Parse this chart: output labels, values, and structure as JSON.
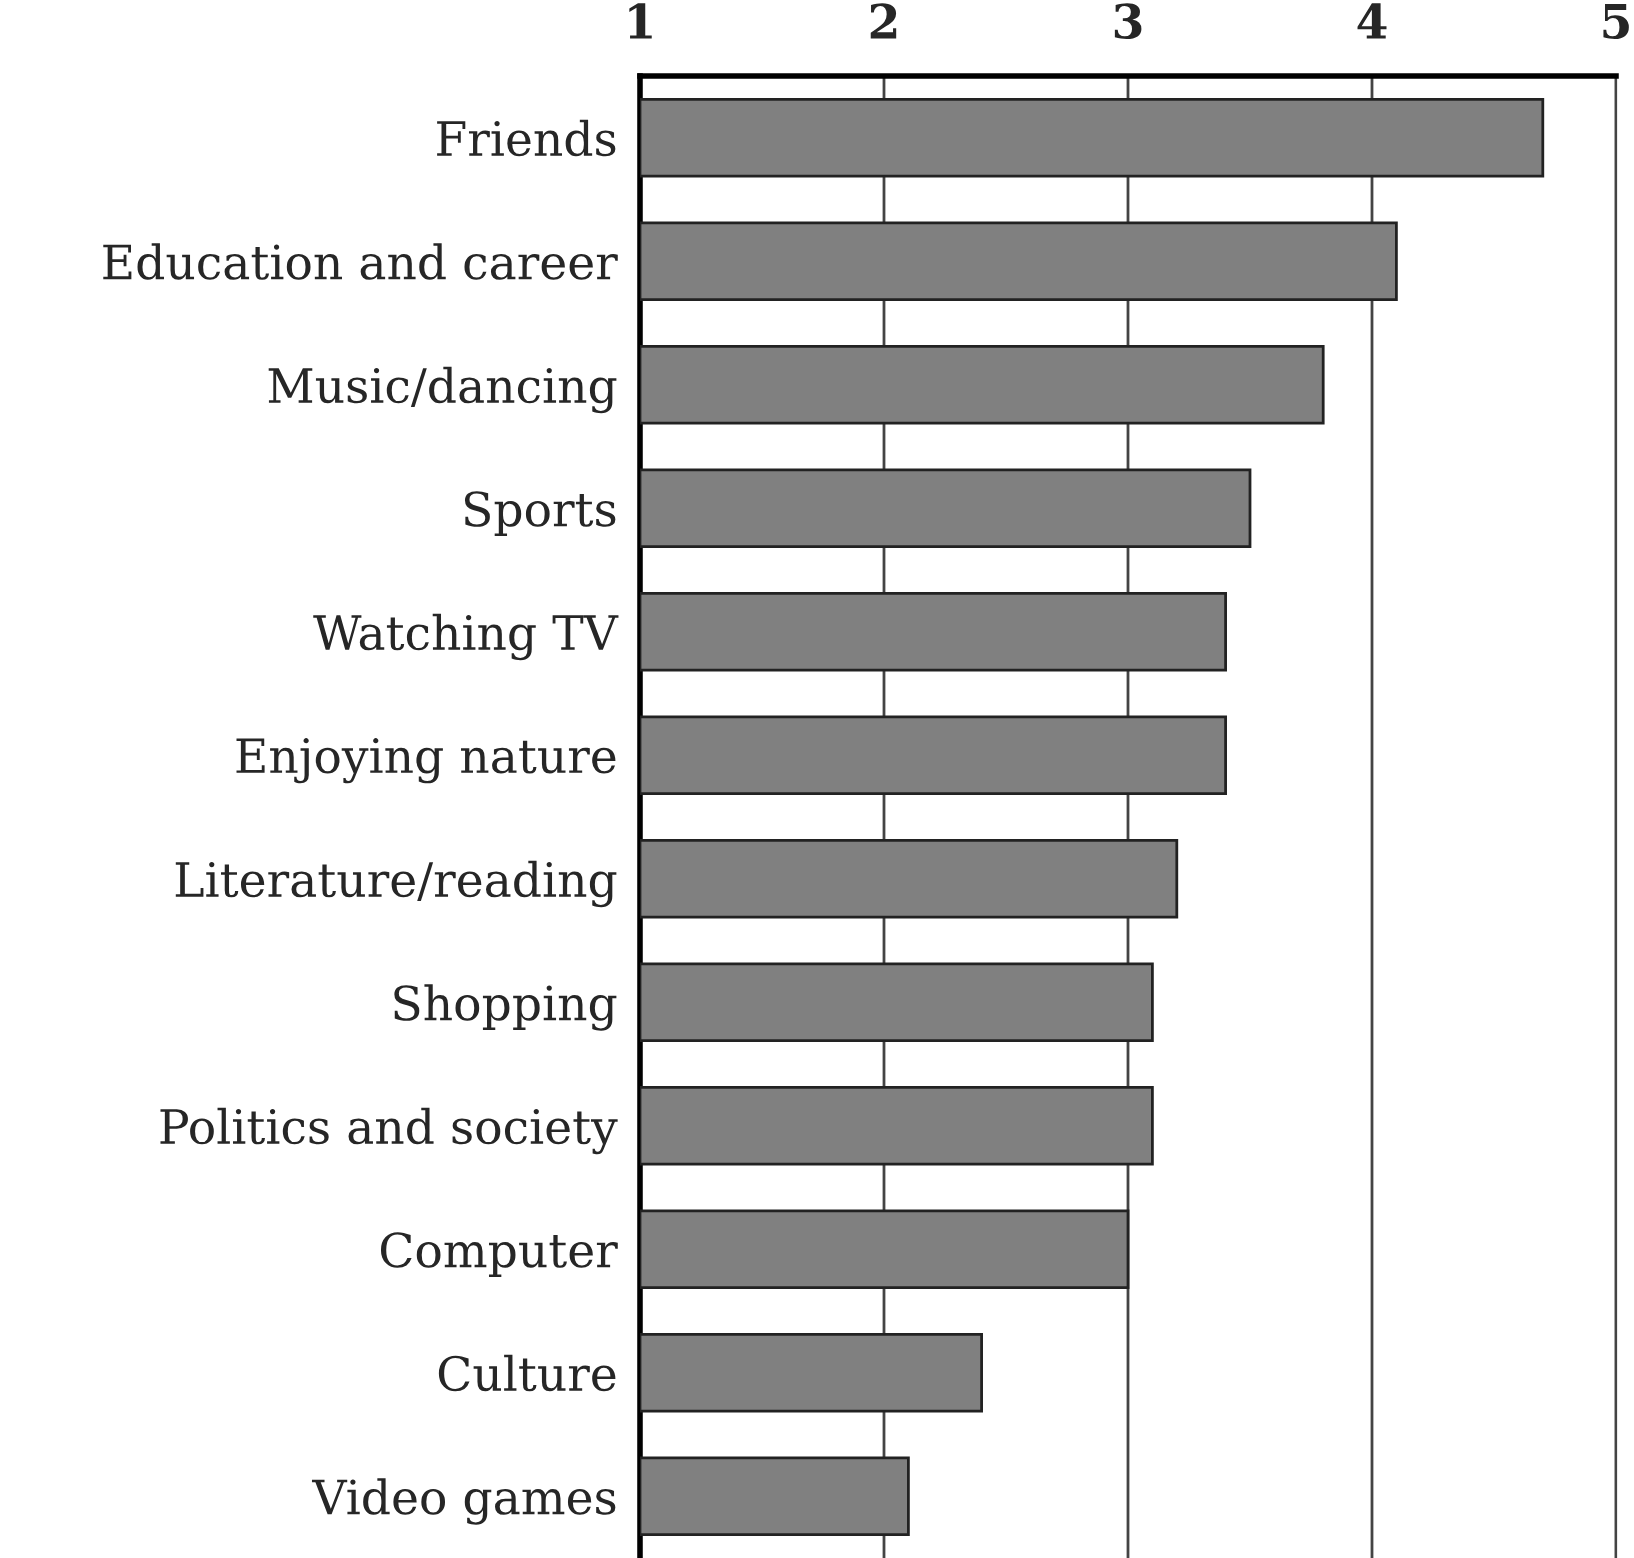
{
  "chart_data": {
    "type": "bar",
    "orientation": "horizontal",
    "categories": [
      "Friends",
      "Education and career",
      "Music/dancing",
      "Sports",
      "Watching TV",
      "Enjoying nature",
      "Literature/reading",
      "Shopping",
      "Politics and society",
      "Computer",
      "Culture",
      "Video games"
    ],
    "values": [
      4.7,
      4.1,
      3.8,
      3.5,
      3.4,
      3.4,
      3.2,
      3.1,
      3.1,
      3.0,
      2.4,
      2.1
    ],
    "color": "#808080",
    "xlim": [
      1,
      5
    ],
    "xticks": [
      1,
      2,
      3,
      4,
      5
    ],
    "grid": "x"
  }
}
